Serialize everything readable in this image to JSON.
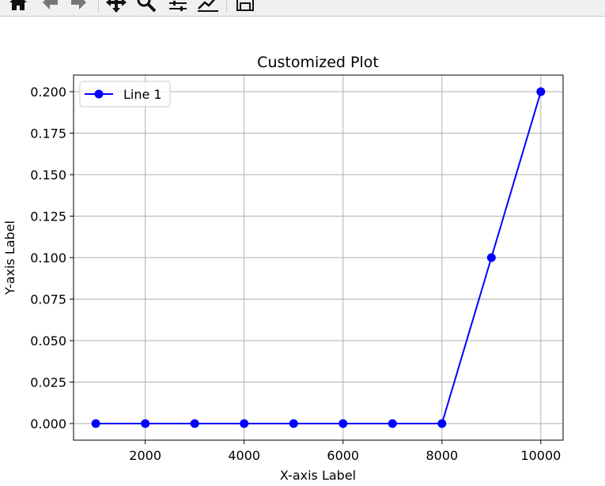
{
  "toolbar": {
    "buttons": [
      {
        "name": "home-icon"
      },
      {
        "name": "back-icon"
      },
      {
        "name": "forward-icon"
      },
      {
        "name": "pan-icon"
      },
      {
        "name": "zoom-icon"
      },
      {
        "name": "configure-subplots-icon"
      },
      {
        "name": "edit-axis-icon"
      },
      {
        "name": "save-icon"
      }
    ]
  },
  "chart_data": {
    "type": "line",
    "title": "Customized Plot",
    "xlabel": "X-axis Label",
    "ylabel": "Y-axis Label",
    "x": [
      1000,
      2000,
      3000,
      4000,
      5000,
      6000,
      7000,
      8000,
      9000,
      10000
    ],
    "series": [
      {
        "name": "Line 1",
        "color": "#0000ff",
        "marker": "circle",
        "values": [
          0,
          0,
          0,
          0,
          0,
          0,
          0,
          0,
          0.1,
          0.2
        ]
      }
    ],
    "xlim": [
      550,
      10450
    ],
    "ylim": [
      -0.01,
      0.21
    ],
    "xticks": [
      2000,
      4000,
      6000,
      8000,
      10000
    ],
    "xtick_labels": [
      "2000",
      "4000",
      "6000",
      "8000",
      "10000"
    ],
    "yticks": [
      0,
      0.025,
      0.05,
      0.075,
      0.1,
      0.125,
      0.15,
      0.175,
      0.2
    ],
    "ytick_labels": [
      "0.000",
      "0.025",
      "0.050",
      "0.075",
      "0.100",
      "0.125",
      "0.150",
      "0.175",
      "0.200"
    ],
    "grid": true,
    "legend_position": "top-left"
  }
}
